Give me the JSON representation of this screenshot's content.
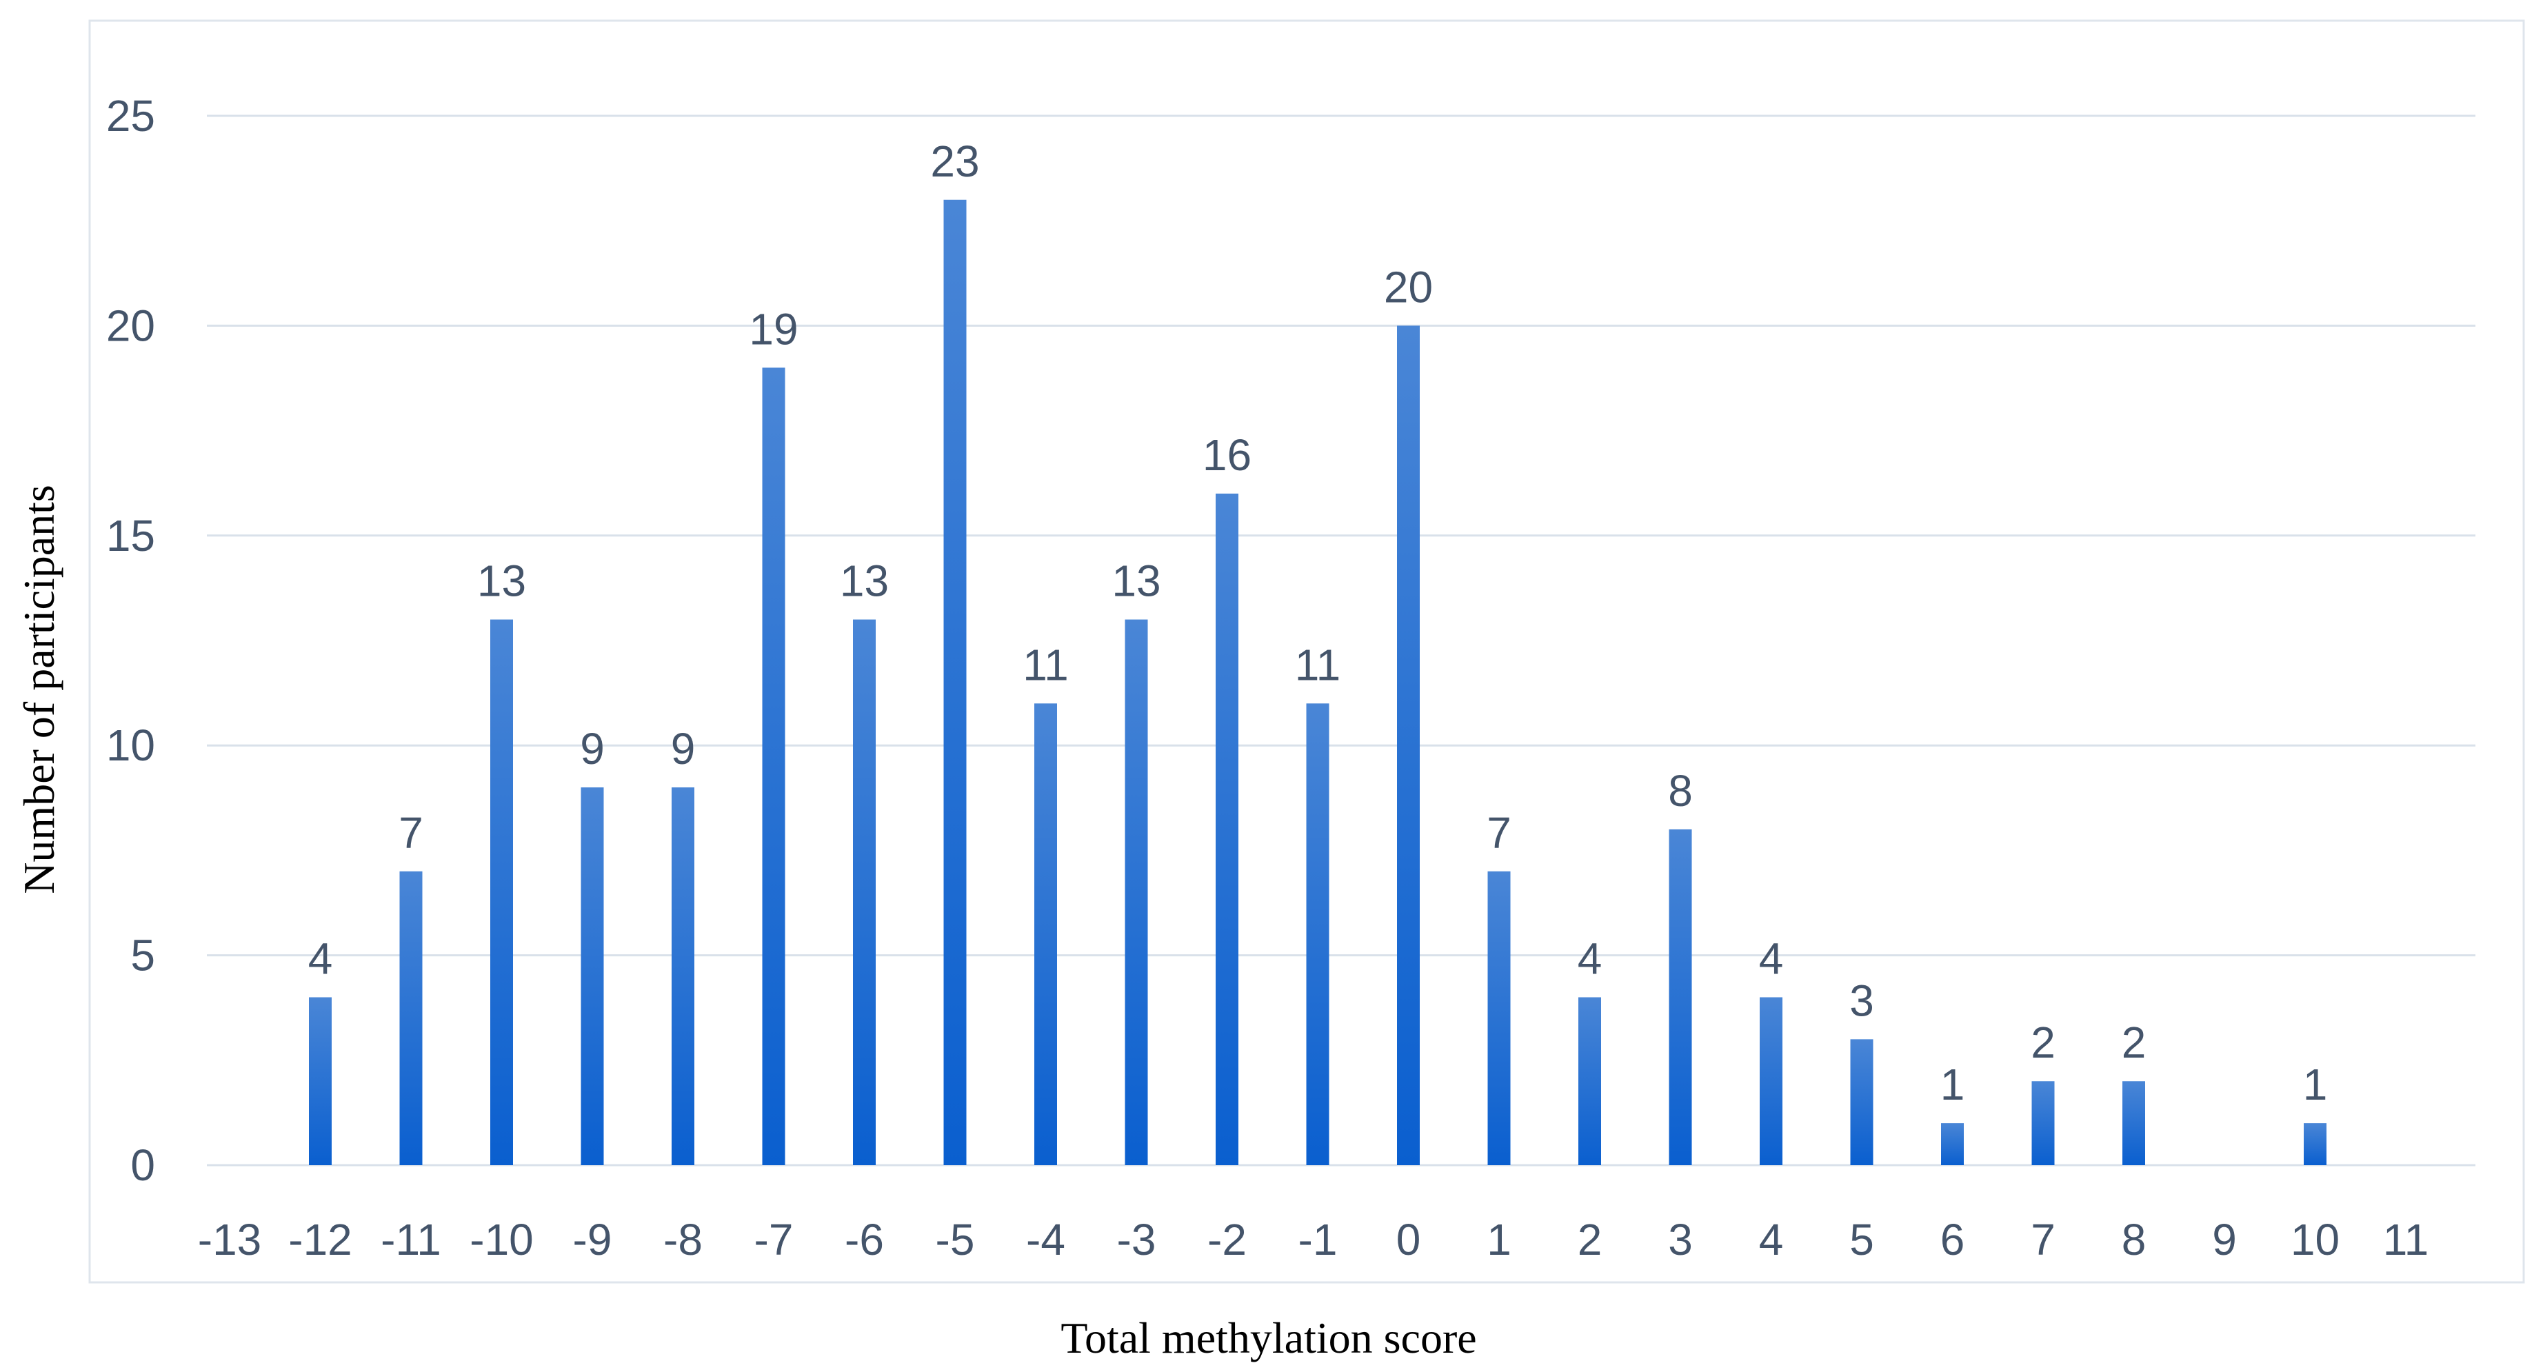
{
  "chart_data": {
    "type": "bar",
    "title": "",
    "xlabel": "Total methylation score",
    "ylabel": "Number of participants",
    "ylim": [
      0,
      25
    ],
    "yticks": [
      0,
      5,
      10,
      15,
      20,
      25
    ],
    "grid": true,
    "legend": "none",
    "categories": [
      "-13",
      "-12",
      "-11",
      "-10",
      "-9",
      "-8",
      "-7",
      "-6",
      "-5",
      "-4",
      "-3",
      "-2",
      "-1",
      "0",
      "1",
      "2",
      "3",
      "4",
      "5",
      "6",
      "7",
      "8",
      "9",
      "10",
      "11"
    ],
    "values": [
      null,
      4,
      7,
      13,
      9,
      9,
      19,
      13,
      23,
      11,
      13,
      16,
      11,
      20,
      7,
      4,
      8,
      4,
      3,
      1,
      2,
      2,
      null,
      1,
      null
    ],
    "value_labels": [
      "",
      "4",
      "7",
      "13",
      "9",
      "9",
      "19",
      "13",
      "23",
      "11",
      "13",
      "16",
      "11",
      "20",
      "7",
      "4",
      "8",
      "4",
      "3",
      "1",
      "2",
      "2",
      "",
      "1",
      ""
    ],
    "ytick_labels": [
      "0",
      "5",
      "10",
      "15",
      "20",
      "25"
    ],
    "colors": {
      "bar_top": "#4a86d6",
      "bar_bottom": "#0a5fcf",
      "text": "#44546a",
      "grid": "#d9e1ea"
    }
  }
}
